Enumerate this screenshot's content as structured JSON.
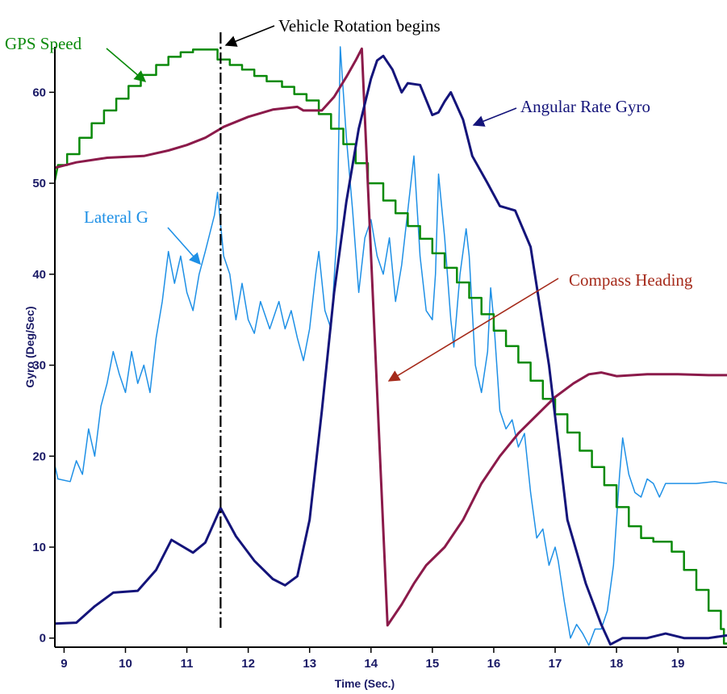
{
  "chart_data": {
    "type": "line",
    "title": "",
    "xlabel": "Time (Sec.)",
    "ylabel": "Gyro (Deg/Sec)",
    "xlim": [
      8.85,
      19.8
    ],
    "ylim": [
      -1,
      65
    ],
    "xticks": [
      9,
      10,
      11,
      12,
      13,
      14,
      15,
      16,
      17,
      18,
      19
    ],
    "yticks": [
      0,
      10,
      20,
      30,
      40,
      50,
      60
    ],
    "grid": false,
    "colors": {
      "angular": "#14147a",
      "lateral": "#1e90e6",
      "gps": "#0a8a0a",
      "compass": "#8b1a4a",
      "annot_red": "#a52a1a",
      "text": "#1a1a66"
    },
    "vline": {
      "x": 11.55
    },
    "annotations": {
      "vehicle_rotation": "Vehicle Rotation begins",
      "gps": "GPS Speed",
      "lateral": "Lateral G",
      "angular": "Angular Rate Gyro",
      "compass": "Compass Heading"
    },
    "series": [
      {
        "name": "Angular Rate Gyro",
        "points": [
          [
            8.85,
            1.6
          ],
          [
            9.2,
            1.7
          ],
          [
            9.5,
            3.5
          ],
          [
            9.8,
            5.0
          ],
          [
            10.2,
            5.2
          ],
          [
            10.5,
            7.5
          ],
          [
            10.75,
            10.8
          ],
          [
            11.1,
            9.4
          ],
          [
            11.3,
            10.5
          ],
          [
            11.55,
            14.3
          ],
          [
            11.8,
            11.2
          ],
          [
            12.1,
            8.5
          ],
          [
            12.4,
            6.5
          ],
          [
            12.6,
            5.8
          ],
          [
            12.8,
            6.8
          ],
          [
            13.0,
            13.0
          ],
          [
            13.2,
            25.0
          ],
          [
            13.4,
            38.0
          ],
          [
            13.6,
            48.0
          ],
          [
            13.8,
            56.0
          ],
          [
            14.0,
            61.5
          ],
          [
            14.1,
            63.5
          ],
          [
            14.2,
            64.0
          ],
          [
            14.35,
            62.5
          ],
          [
            14.5,
            60.0
          ],
          [
            14.6,
            61.0
          ],
          [
            14.8,
            60.8
          ],
          [
            15.0,
            57.5
          ],
          [
            15.1,
            57.8
          ],
          [
            15.2,
            59.0
          ],
          [
            15.3,
            60.0
          ],
          [
            15.5,
            57.0
          ],
          [
            15.65,
            53.0
          ],
          [
            15.9,
            50.0
          ],
          [
            16.1,
            47.5
          ],
          [
            16.35,
            47.0
          ],
          [
            16.6,
            43.0
          ],
          [
            16.9,
            30.0
          ],
          [
            17.2,
            13.0
          ],
          [
            17.5,
            6.0
          ],
          [
            17.75,
            1.5
          ],
          [
            17.9,
            -0.7
          ],
          [
            18.1,
            0.0
          ],
          [
            18.5,
            0.0
          ],
          [
            18.8,
            0.5
          ],
          [
            19.1,
            0.0
          ],
          [
            19.5,
            0.0
          ],
          [
            19.8,
            0.3
          ]
        ]
      },
      {
        "name": "Lateral G",
        "points": [
          [
            8.85,
            19.0
          ],
          [
            8.9,
            17.5
          ],
          [
            9.1,
            17.2
          ],
          [
            9.2,
            19.5
          ],
          [
            9.3,
            18.0
          ],
          [
            9.4,
            23.0
          ],
          [
            9.5,
            20.0
          ],
          [
            9.6,
            25.5
          ],
          [
            9.7,
            28.0
          ],
          [
            9.8,
            31.5
          ],
          [
            9.9,
            29.0
          ],
          [
            10.0,
            27.0
          ],
          [
            10.1,
            31.5
          ],
          [
            10.2,
            28.0
          ],
          [
            10.3,
            30.0
          ],
          [
            10.4,
            27.0
          ],
          [
            10.5,
            33.0
          ],
          [
            10.6,
            37.0
          ],
          [
            10.7,
            42.5
          ],
          [
            10.8,
            39.0
          ],
          [
            10.9,
            42.0
          ],
          [
            11.0,
            38.0
          ],
          [
            11.1,
            36.0
          ],
          [
            11.2,
            40.0
          ],
          [
            11.3,
            42.5
          ],
          [
            11.45,
            46.5
          ],
          [
            11.5,
            49.0
          ],
          [
            11.6,
            42.0
          ],
          [
            11.7,
            40.0
          ],
          [
            11.8,
            35.0
          ],
          [
            11.9,
            39.0
          ],
          [
            12.0,
            35.0
          ],
          [
            12.1,
            33.5
          ],
          [
            12.2,
            37.0
          ],
          [
            12.35,
            34.0
          ],
          [
            12.5,
            37.0
          ],
          [
            12.6,
            34.0
          ],
          [
            12.7,
            36.0
          ],
          [
            12.8,
            33.0
          ],
          [
            12.9,
            30.5
          ],
          [
            13.0,
            34.0
          ],
          [
            13.1,
            40.0
          ],
          [
            13.15,
            42.5
          ],
          [
            13.25,
            36.0
          ],
          [
            13.35,
            34.0
          ],
          [
            13.45,
            45.0
          ],
          [
            13.5,
            65.0
          ],
          [
            13.6,
            55.0
          ],
          [
            13.7,
            47.0
          ],
          [
            13.8,
            38.0
          ],
          [
            13.9,
            44.0
          ],
          [
            14.0,
            46.0
          ],
          [
            14.1,
            42.0
          ],
          [
            14.2,
            40.0
          ],
          [
            14.3,
            44.0
          ],
          [
            14.4,
            37.0
          ],
          [
            14.5,
            41.0
          ],
          [
            14.6,
            47.0
          ],
          [
            14.7,
            53.0
          ],
          [
            14.8,
            42.0
          ],
          [
            14.9,
            36.0
          ],
          [
            15.0,
            35.0
          ],
          [
            15.05,
            40.0
          ],
          [
            15.1,
            51.0
          ],
          [
            15.2,
            44.0
          ],
          [
            15.3,
            35.0
          ],
          [
            15.35,
            32.0
          ],
          [
            15.45,
            40.0
          ],
          [
            15.55,
            45.0
          ],
          [
            15.6,
            42.0
          ],
          [
            15.7,
            30.0
          ],
          [
            15.8,
            27.0
          ],
          [
            15.9,
            31.5
          ],
          [
            15.95,
            38.5
          ],
          [
            16.0,
            35.0
          ],
          [
            16.1,
            25.0
          ],
          [
            16.2,
            23.0
          ],
          [
            16.3,
            24.0
          ],
          [
            16.4,
            21.0
          ],
          [
            16.5,
            22.5
          ],
          [
            16.6,
            16.0
          ],
          [
            16.7,
            11.0
          ],
          [
            16.8,
            12.0
          ],
          [
            16.9,
            8.0
          ],
          [
            17.0,
            10.0
          ],
          [
            17.05,
            8.5
          ],
          [
            17.15,
            4.0
          ],
          [
            17.25,
            0.0
          ],
          [
            17.35,
            1.5
          ],
          [
            17.45,
            0.5
          ],
          [
            17.55,
            -0.8
          ],
          [
            17.65,
            1.0
          ],
          [
            17.75,
            1.0
          ],
          [
            17.85,
            3.0
          ],
          [
            17.95,
            8.0
          ],
          [
            18.05,
            18.0
          ],
          [
            18.1,
            22.0
          ],
          [
            18.2,
            18.0
          ],
          [
            18.3,
            16.0
          ],
          [
            18.4,
            15.5
          ],
          [
            18.5,
            17.5
          ],
          [
            18.6,
            17.0
          ],
          [
            18.7,
            15.5
          ],
          [
            18.8,
            17.0
          ],
          [
            19.0,
            17.0
          ],
          [
            19.3,
            17.0
          ],
          [
            19.6,
            17.2
          ],
          [
            19.8,
            17.0
          ]
        ]
      },
      {
        "name": "GPS Speed",
        "points": [
          [
            8.85,
            50.3
          ],
          [
            8.9,
            52.0
          ],
          [
            9.05,
            52.0
          ],
          [
            9.05,
            53.2
          ],
          [
            9.25,
            53.2
          ],
          [
            9.25,
            55.0
          ],
          [
            9.45,
            55.0
          ],
          [
            9.45,
            56.6
          ],
          [
            9.65,
            56.6
          ],
          [
            9.65,
            58.0
          ],
          [
            9.85,
            58.0
          ],
          [
            9.85,
            59.3
          ],
          [
            10.05,
            59.3
          ],
          [
            10.05,
            60.7
          ],
          [
            10.25,
            60.7
          ],
          [
            10.25,
            61.9
          ],
          [
            10.5,
            61.9
          ],
          [
            10.5,
            63.0
          ],
          [
            10.7,
            63.0
          ],
          [
            10.7,
            63.9
          ],
          [
            10.9,
            63.9
          ],
          [
            10.9,
            64.4
          ],
          [
            11.1,
            64.4
          ],
          [
            11.1,
            64.7
          ],
          [
            11.5,
            64.7
          ],
          [
            11.5,
            63.6
          ],
          [
            11.7,
            63.6
          ],
          [
            11.7,
            63.0
          ],
          [
            11.9,
            63.0
          ],
          [
            11.9,
            62.5
          ],
          [
            12.1,
            62.5
          ],
          [
            12.1,
            61.8
          ],
          [
            12.3,
            61.8
          ],
          [
            12.3,
            61.2
          ],
          [
            12.55,
            61.2
          ],
          [
            12.55,
            60.6
          ],
          [
            12.75,
            60.6
          ],
          [
            12.75,
            59.8
          ],
          [
            12.95,
            59.8
          ],
          [
            12.95,
            59.1
          ],
          [
            13.15,
            59.1
          ],
          [
            13.15,
            57.6
          ],
          [
            13.35,
            57.6
          ],
          [
            13.35,
            56.0
          ],
          [
            13.55,
            56.0
          ],
          [
            13.55,
            54.3
          ],
          [
            13.75,
            54.3
          ],
          [
            13.75,
            52.2
          ],
          [
            13.95,
            52.2
          ],
          [
            13.95,
            50.0
          ],
          [
            14.2,
            50.0
          ],
          [
            14.2,
            48.1
          ],
          [
            14.4,
            48.1
          ],
          [
            14.4,
            46.7
          ],
          [
            14.6,
            46.7
          ],
          [
            14.6,
            45.3
          ],
          [
            14.8,
            45.3
          ],
          [
            14.8,
            43.9
          ],
          [
            15.0,
            43.9
          ],
          [
            15.0,
            42.3
          ],
          [
            15.2,
            42.3
          ],
          [
            15.2,
            40.7
          ],
          [
            15.4,
            40.7
          ],
          [
            15.4,
            39.1
          ],
          [
            15.6,
            39.1
          ],
          [
            15.6,
            37.4
          ],
          [
            15.8,
            37.4
          ],
          [
            15.8,
            35.6
          ],
          [
            16.0,
            35.6
          ],
          [
            16.0,
            33.8
          ],
          [
            16.2,
            33.8
          ],
          [
            16.2,
            32.1
          ],
          [
            16.4,
            32.1
          ],
          [
            16.4,
            30.3
          ],
          [
            16.6,
            30.3
          ],
          [
            16.6,
            28.3
          ],
          [
            16.8,
            28.3
          ],
          [
            16.8,
            26.3
          ],
          [
            17.0,
            26.3
          ],
          [
            17.0,
            24.6
          ],
          [
            17.2,
            24.6
          ],
          [
            17.2,
            22.6
          ],
          [
            17.4,
            22.6
          ],
          [
            17.4,
            20.6
          ],
          [
            17.6,
            20.6
          ],
          [
            17.6,
            18.8
          ],
          [
            17.8,
            18.8
          ],
          [
            17.8,
            16.8
          ],
          [
            18.0,
            16.8
          ],
          [
            18.0,
            14.4
          ],
          [
            18.2,
            14.4
          ],
          [
            18.2,
            12.3
          ],
          [
            18.4,
            12.3
          ],
          [
            18.4,
            11.0
          ],
          [
            18.6,
            11.0
          ],
          [
            18.6,
            10.6
          ],
          [
            18.9,
            10.6
          ],
          [
            18.9,
            9.5
          ],
          [
            19.1,
            9.5
          ],
          [
            19.1,
            7.5
          ],
          [
            19.3,
            7.5
          ],
          [
            19.3,
            5.3
          ],
          [
            19.5,
            5.3
          ],
          [
            19.5,
            3.0
          ],
          [
            19.7,
            3.0
          ],
          [
            19.7,
            1.0
          ],
          [
            19.75,
            1.0
          ],
          [
            19.75,
            -0.6
          ],
          [
            19.8,
            -0.6
          ]
        ]
      },
      {
        "name": "Compass Heading",
        "points": [
          [
            8.85,
            51.7
          ],
          [
            9.2,
            52.3
          ],
          [
            9.7,
            52.8
          ],
          [
            10.3,
            53.0
          ],
          [
            10.7,
            53.6
          ],
          [
            11.0,
            54.2
          ],
          [
            11.3,
            55.0
          ],
          [
            11.6,
            56.2
          ],
          [
            12.0,
            57.3
          ],
          [
            12.4,
            58.1
          ],
          [
            12.8,
            58.4
          ],
          [
            12.9,
            58.0
          ],
          [
            13.2,
            58.0
          ],
          [
            13.4,
            59.5
          ],
          [
            13.6,
            61.7
          ],
          [
            13.75,
            63.5
          ],
          [
            13.85,
            64.8
          ],
          [
            14.27,
            1.4
          ],
          [
            14.5,
            3.7
          ],
          [
            14.7,
            6.0
          ],
          [
            14.9,
            8.0
          ],
          [
            15.2,
            10.0
          ],
          [
            15.5,
            13.0
          ],
          [
            15.8,
            17.0
          ],
          [
            16.1,
            20.0
          ],
          [
            16.4,
            22.5
          ],
          [
            16.7,
            24.5
          ],
          [
            17.0,
            26.5
          ],
          [
            17.3,
            28.0
          ],
          [
            17.55,
            29.0
          ],
          [
            17.75,
            29.2
          ],
          [
            18.0,
            28.8
          ],
          [
            18.5,
            29.0
          ],
          [
            19.0,
            29.0
          ],
          [
            19.5,
            28.9
          ],
          [
            19.8,
            28.9
          ]
        ]
      }
    ]
  }
}
